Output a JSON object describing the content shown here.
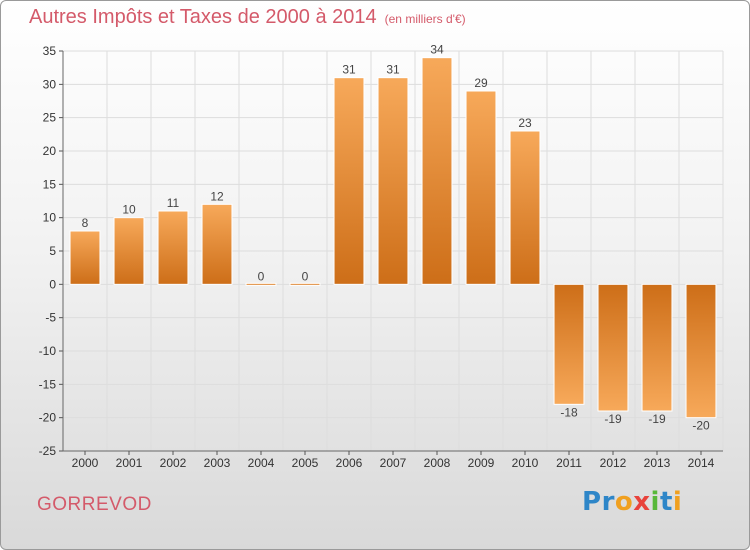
{
  "chart_data": {
    "type": "bar",
    "title": "Autres Impôts et Taxes de 2000 à 2014",
    "title_unit": "(en milliers d'€)",
    "categories": [
      "2000",
      "2001",
      "2002",
      "2003",
      "2004",
      "2005",
      "2006",
      "2007",
      "2008",
      "2009",
      "2010",
      "2011",
      "2012",
      "2013",
      "2014"
    ],
    "values": [
      8,
      10,
      11,
      12,
      0,
      0,
      31,
      31,
      34,
      29,
      23,
      -18,
      -19,
      -19,
      -20
    ],
    "value_labels": [
      "8",
      "10",
      "11",
      "12",
      "0",
      "0",
      "31",
      "31",
      "34",
      "29",
      "23",
      "-18",
      "-19",
      "-19",
      "-20"
    ],
    "ylim": [
      -25,
      35
    ],
    "yticks": [
      -25,
      -20,
      -15,
      -10,
      -5,
      0,
      5,
      10,
      15,
      20,
      25,
      30,
      35
    ],
    "ytick_labels": [
      "-25",
      "-20",
      "-15",
      "-10",
      "-5",
      "0",
      "5",
      "10",
      "15",
      "20",
      "25",
      "30",
      "35"
    ],
    "xlabel": "",
    "ylabel": "",
    "grid": true,
    "legend": false,
    "bar_color": "#ee9a48"
  },
  "footer": {
    "place": "GORREVOD",
    "logo_letters": [
      {
        "char": "P",
        "color": "#2e86c8"
      },
      {
        "char": "r",
        "color": "#2e86c8"
      },
      {
        "char": "o",
        "color": "#f0a020"
      },
      {
        "char": "x",
        "color": "#e8423b"
      },
      {
        "char": "i",
        "color": "#58b83a"
      },
      {
        "char": "t",
        "color": "#2e86c8"
      },
      {
        "char": "i",
        "color": "#f0a020"
      }
    ]
  }
}
